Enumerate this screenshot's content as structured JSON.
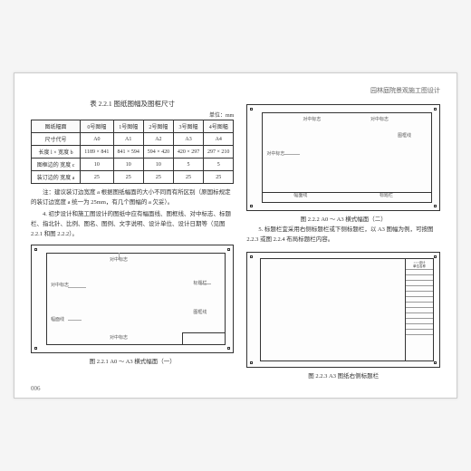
{
  "header": "园林庭院景观施工图设计",
  "table": {
    "title": "表 2.2.1 图纸图幅及图框尺寸",
    "unit": "单位：mm",
    "headers": [
      "图纸幅面",
      "0号图幅",
      "1号图幅",
      "2号图幅",
      "3号图幅",
      "4号图幅"
    ],
    "rows": [
      [
        "尺寸代号",
        "A0",
        "A1",
        "A2",
        "A3",
        "A4"
      ],
      [
        "长度 l ×\n宽度 b",
        "1189 × 841",
        "841 × 594",
        "594 × 420",
        "420 × 297",
        "297 × 210"
      ],
      [
        "图框边的\n宽度 c",
        "10",
        "10",
        "10",
        "5",
        "5"
      ],
      [
        "装订边的\n宽度 a",
        "25",
        "25",
        "25",
        "25",
        "25"
      ]
    ]
  },
  "note": "注：建议装订边宽度 a 根据图纸幅面的大小不同而有所区别（原国标规定的装订边宽度 a 统一为 25mm，有几个图幅的 a 欠妥）。",
  "para1": "4. 初步设计和施工图设计的图纸中应有幅面线、图框线、对中标志、标题栏、指北针、比例、图名、图例、文字说明、设计单位、设计日期等（见图 2.2.1 和图 2.2.2）。",
  "para2": "5. 标题栏宜采用右侧标题栏或下侧标题栏，以 A3 图幅为例，可按图 2.2.3 或图 2.2.4 布局标题栏内容。",
  "fig1_cap": "图 2.2.1  A0 ～ A3 横式幅面（一）",
  "fig2_cap": "图 2.2.2  A0 ～ A3 横式幅面（二）",
  "fig3_cap": "图 2.2.3  A3 图纸右侧标题栏",
  "labels": {
    "duizhong": "对中标志",
    "biaotilan": "标题栏",
    "fumianxian": "幅面线",
    "tukuangxian": "图框线"
  },
  "page_num": "006"
}
